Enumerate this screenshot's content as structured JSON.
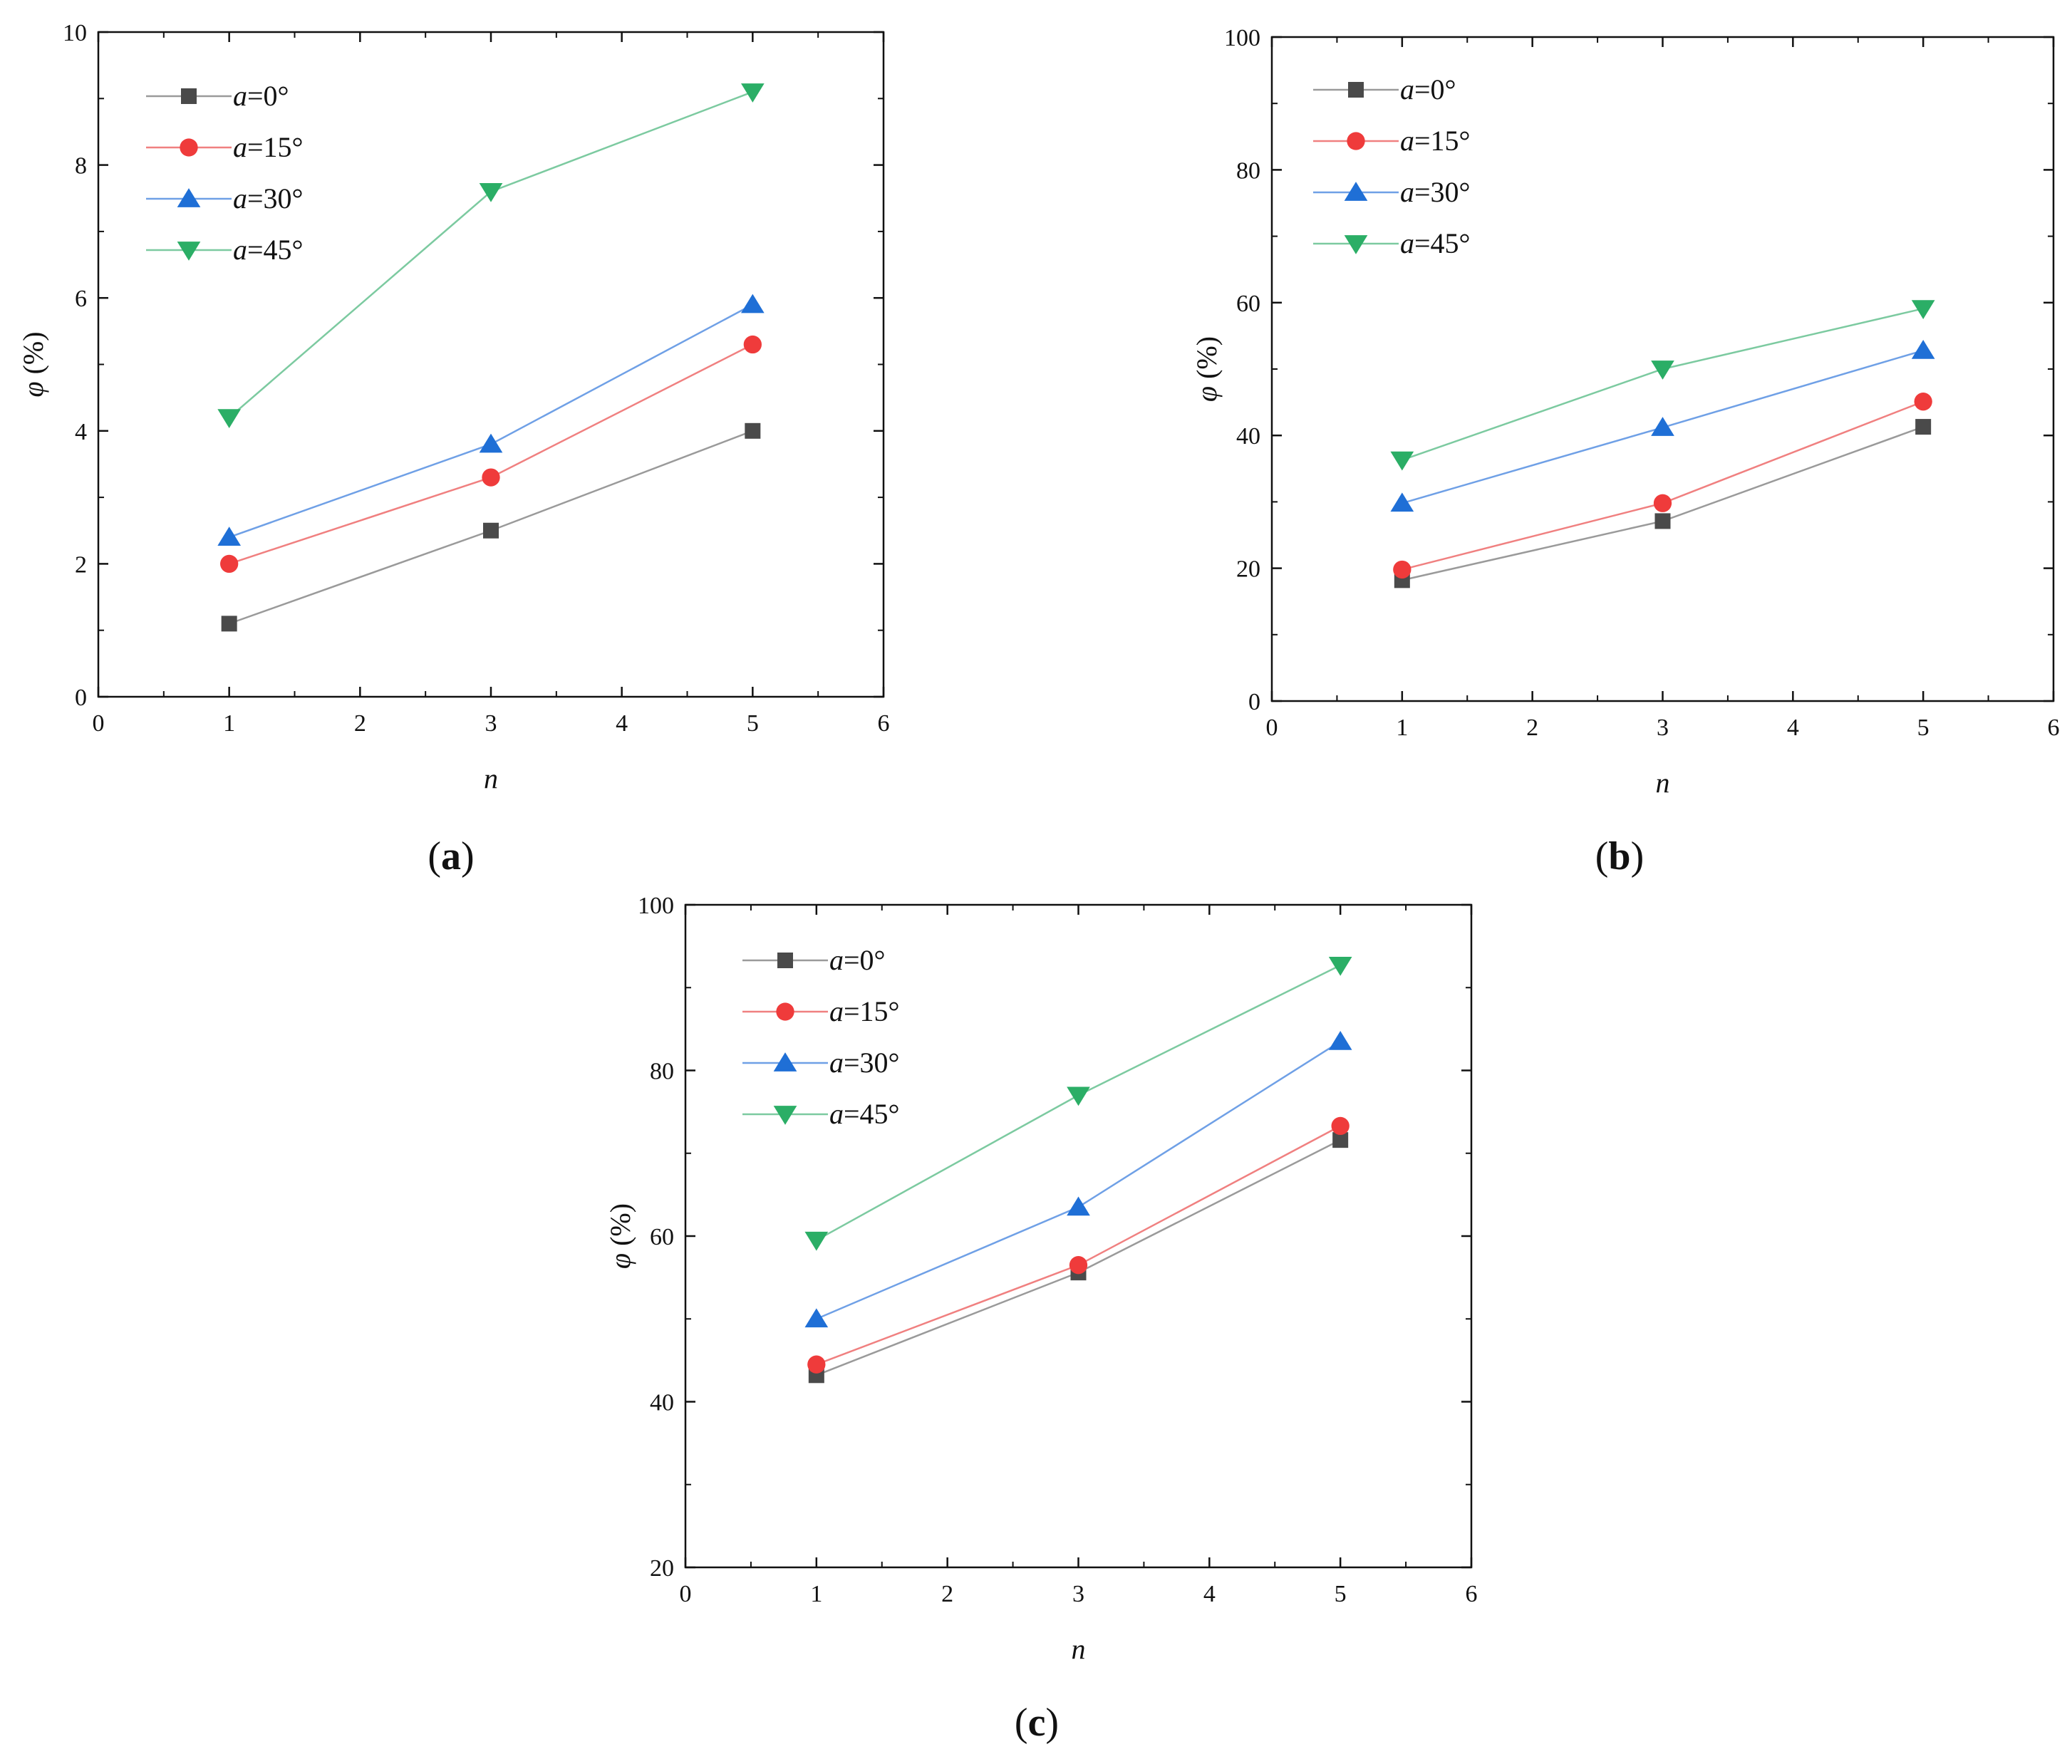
{
  "chart_data": [
    {
      "type": "line",
      "panel_label": "a",
      "xlabel": "n",
      "ylabel_symbol": "φ",
      "ylabel_unit": "(%)",
      "xlim": [
        0,
        6
      ],
      "ylim": [
        0,
        10
      ],
      "xticks": [
        0,
        1,
        2,
        3,
        4,
        5,
        6
      ],
      "yticks": [
        0,
        2,
        4,
        6,
        8,
        10
      ],
      "x": [
        1,
        3,
        5
      ],
      "legend_position": "top-left",
      "series": [
        {
          "name_var": "a",
          "name_val": "=0°",
          "color": "#4a4a4a",
          "line_color": "#9a9a9a",
          "marker": "square",
          "values": [
            1.1,
            2.5,
            4.0
          ]
        },
        {
          "name_var": "a",
          "name_val": "=15°",
          "color": "#ef3b3b",
          "line_color": "#f08080",
          "marker": "circle",
          "values": [
            2.0,
            3.3,
            5.3
          ]
        },
        {
          "name_var": "a",
          "name_val": "=30°",
          "color": "#1f6fd6",
          "line_color": "#6fa0e6",
          "marker": "triangle-up",
          "values": [
            2.4,
            3.8,
            5.9
          ]
        },
        {
          "name_var": "a",
          "name_val": "=45°",
          "color": "#2bae66",
          "line_color": "#7ccaa0",
          "marker": "triangle-down",
          "values": [
            4.2,
            7.6,
            9.1
          ]
        }
      ]
    },
    {
      "type": "line",
      "panel_label": "b",
      "xlabel": "n",
      "ylabel_symbol": "φ",
      "ylabel_unit": "(%)",
      "xlim": [
        0,
        6
      ],
      "ylim": [
        0,
        100
      ],
      "xticks": [
        0,
        1,
        2,
        3,
        4,
        5,
        6
      ],
      "yticks": [
        0,
        20,
        40,
        60,
        80,
        100
      ],
      "x": [
        1,
        3,
        5
      ],
      "legend_position": "top-left",
      "series": [
        {
          "name_var": "a",
          "name_val": "=0°",
          "color": "#4a4a4a",
          "line_color": "#9a9a9a",
          "marker": "square",
          "values": [
            18.2,
            27.1,
            41.3
          ]
        },
        {
          "name_var": "a",
          "name_val": "=15°",
          "color": "#ef3b3b",
          "line_color": "#f08080",
          "marker": "circle",
          "values": [
            19.8,
            29.8,
            45.1
          ]
        },
        {
          "name_var": "a",
          "name_val": "=30°",
          "color": "#1f6fd6",
          "line_color": "#6fa0e6",
          "marker": "triangle-up",
          "values": [
            29.8,
            41.2,
            52.8
          ]
        },
        {
          "name_var": "a",
          "name_val": "=45°",
          "color": "#2bae66",
          "line_color": "#7ccaa0",
          "marker": "triangle-down",
          "values": [
            36.3,
            50.0,
            59.1
          ]
        }
      ]
    },
    {
      "type": "line",
      "panel_label": "c",
      "xlabel": "n",
      "ylabel_symbol": "φ",
      "ylabel_unit": "(%)",
      "xlim": [
        0,
        6
      ],
      "ylim": [
        20,
        100
      ],
      "xticks": [
        0,
        1,
        2,
        3,
        4,
        5,
        6
      ],
      "yticks": [
        20,
        40,
        60,
        80,
        100
      ],
      "x": [
        1,
        3,
        5
      ],
      "legend_position": "top-left",
      "series": [
        {
          "name_var": "a",
          "name_val": "=0°",
          "color": "#4a4a4a",
          "line_color": "#9a9a9a",
          "marker": "square",
          "values": [
            43.2,
            55.6,
            71.6
          ]
        },
        {
          "name_var": "a",
          "name_val": "=15°",
          "color": "#ef3b3b",
          "line_color": "#f08080",
          "marker": "circle",
          "values": [
            44.5,
            56.5,
            73.3
          ]
        },
        {
          "name_var": "a",
          "name_val": "=30°",
          "color": "#1f6fd6",
          "line_color": "#6fa0e6",
          "marker": "triangle-up",
          "values": [
            50.0,
            63.5,
            83.5
          ]
        },
        {
          "name_var": "a",
          "name_val": "=45°",
          "color": "#2bae66",
          "line_color": "#7ccaa0",
          "marker": "triangle-down",
          "values": [
            59.5,
            77.0,
            92.7
          ]
        }
      ]
    }
  ]
}
